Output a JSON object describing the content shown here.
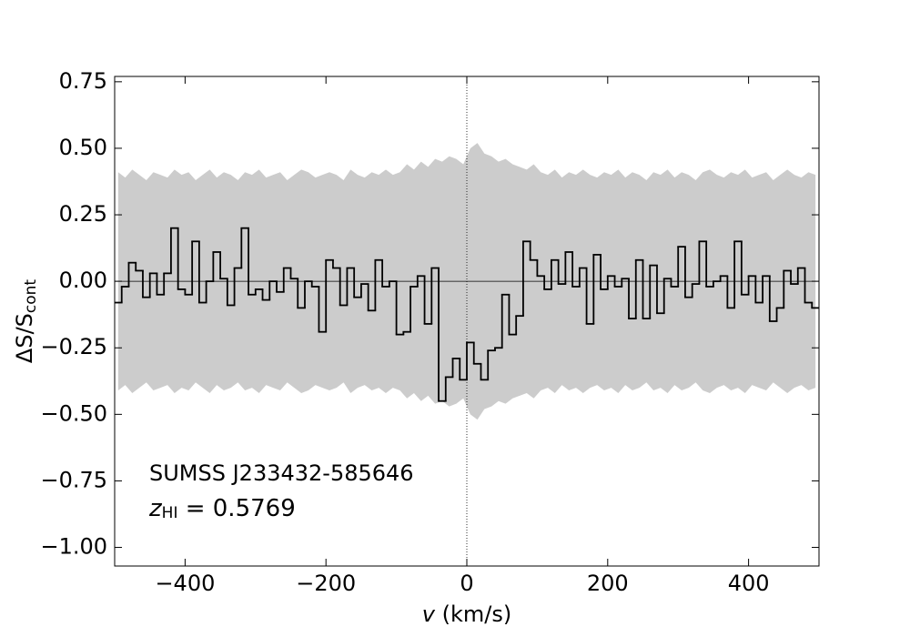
{
  "chart_data": {
    "type": "step",
    "xlabel": {
      "main": "v",
      "rest": " (km/s)"
    },
    "ylabel": {
      "main": "ΔS/S",
      "sub": "cont"
    },
    "annotations": [
      "SUMSS J233432-585646",
      {
        "main": "z",
        "sub": "HI",
        "rest": " = 0.5769"
      }
    ],
    "xlim": [
      -500,
      500
    ],
    "ylim": [
      -1.07,
      0.77
    ],
    "xticks": [
      {
        "value": -400,
        "label": "−400"
      },
      {
        "value": -200,
        "label": "−200"
      },
      0,
      200,
      400
    ],
    "yticks": [
      {
        "value": 0.75,
        "label": "0.75"
      },
      {
        "value": 0.5,
        "label": "0.50"
      },
      {
        "value": 0.25,
        "label": "0.25"
      },
      {
        "value": 0,
        "label": "0.00"
      },
      {
        "value": -0.25,
        "label": "−0.25"
      },
      {
        "value": -0.5,
        "label": "−0.50"
      },
      {
        "value": -0.75,
        "label": "−0.75"
      },
      {
        "value": -1,
        "label": "−1.00"
      }
    ],
    "hline": 0,
    "vline": 0,
    "line_color": "#000000",
    "band_color": "#cccccc",
    "x": [
      -495,
      -485,
      -475,
      -465,
      -455,
      -445,
      -435,
      -425,
      -415,
      -405,
      -395,
      -385,
      -375,
      -365,
      -355,
      -345,
      -335,
      -325,
      -315,
      -305,
      -295,
      -285,
      -275,
      -265,
      -255,
      -245,
      -235,
      -225,
      -215,
      -205,
      -195,
      -185,
      -175,
      -165,
      -155,
      -145,
      -135,
      -125,
      -115,
      -105,
      -95,
      -85,
      -75,
      -65,
      -55,
      -45,
      -35,
      -25,
      -15,
      -5,
      5,
      15,
      25,
      35,
      45,
      55,
      65,
      75,
      85,
      95,
      105,
      115,
      125,
      135,
      145,
      155,
      165,
      175,
      185,
      195,
      205,
      215,
      225,
      235,
      245,
      255,
      265,
      275,
      285,
      295,
      305,
      315,
      325,
      335,
      345,
      355,
      365,
      375,
      385,
      395,
      405,
      415,
      425,
      435,
      445,
      455,
      465,
      475,
      485,
      495
    ],
    "values": [
      -0.08,
      -0.02,
      0.07,
      0.04,
      -0.06,
      0.03,
      -0.05,
      0.03,
      0.2,
      -0.03,
      -0.05,
      0.15,
      -0.08,
      0.0,
      0.11,
      0.01,
      -0.09,
      0.05,
      0.2,
      -0.05,
      -0.03,
      -0.07,
      0.0,
      -0.04,
      0.05,
      0.01,
      -0.1,
      0.0,
      -0.02,
      -0.19,
      0.08,
      0.05,
      -0.09,
      0.05,
      -0.06,
      -0.01,
      -0.11,
      0.08,
      -0.02,
      0.0,
      -0.2,
      -0.19,
      -0.02,
      0.02,
      -0.16,
      0.05,
      -0.45,
      -0.36,
      -0.29,
      -0.37,
      -0.23,
      -0.31,
      -0.37,
      -0.26,
      -0.25,
      -0.05,
      -0.2,
      -0.13,
      0.15,
      0.08,
      0.02,
      -0.03,
      0.08,
      -0.01,
      0.11,
      -0.02,
      0.05,
      -0.16,
      0.1,
      -0.03,
      0.02,
      -0.02,
      0.01,
      -0.14,
      0.08,
      -0.14,
      0.06,
      -0.12,
      0.01,
      -0.02,
      0.13,
      -0.06,
      -0.01,
      0.15,
      -0.02,
      0.0,
      0.02,
      -0.1,
      0.15,
      -0.05,
      0.02,
      -0.08,
      0.02,
      -0.15,
      -0.1,
      0.04,
      -0.01,
      0.05,
      -0.08,
      -0.1
    ],
    "band": [
      0.41,
      0.39,
      0.42,
      0.4,
      0.38,
      0.41,
      0.4,
      0.39,
      0.42,
      0.4,
      0.41,
      0.38,
      0.4,
      0.42,
      0.39,
      0.41,
      0.4,
      0.38,
      0.41,
      0.4,
      0.42,
      0.39,
      0.4,
      0.41,
      0.38,
      0.4,
      0.42,
      0.41,
      0.39,
      0.4,
      0.41,
      0.4,
      0.38,
      0.42,
      0.4,
      0.39,
      0.41,
      0.4,
      0.42,
      0.4,
      0.41,
      0.44,
      0.42,
      0.45,
      0.43,
      0.46,
      0.45,
      0.47,
      0.46,
      0.44,
      0.5,
      0.52,
      0.48,
      0.47,
      0.45,
      0.46,
      0.44,
      0.43,
      0.42,
      0.44,
      0.41,
      0.4,
      0.42,
      0.39,
      0.41,
      0.4,
      0.42,
      0.4,
      0.39,
      0.41,
      0.4,
      0.42,
      0.39,
      0.41,
      0.4,
      0.38,
      0.41,
      0.4,
      0.42,
      0.39,
      0.41,
      0.4,
      0.38,
      0.41,
      0.42,
      0.4,
      0.39,
      0.41,
      0.4,
      0.42,
      0.39,
      0.4,
      0.41,
      0.38,
      0.4,
      0.42,
      0.4,
      0.39,
      0.41,
      0.4
    ]
  }
}
